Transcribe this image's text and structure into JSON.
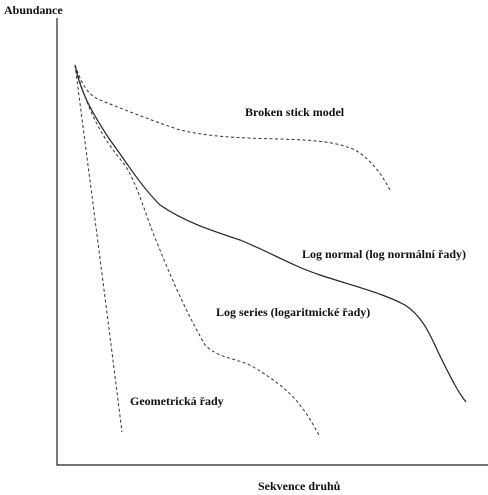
{
  "y_axis_label": "Abundance",
  "x_axis_label": "Sekvence druhů",
  "curves": [
    {
      "label": "Broken stick model"
    },
    {
      "label": "Log normal (log normální řady)"
    },
    {
      "label": "Log series (logaritmické řady)"
    },
    {
      "label": "Geometrická řady"
    }
  ]
}
